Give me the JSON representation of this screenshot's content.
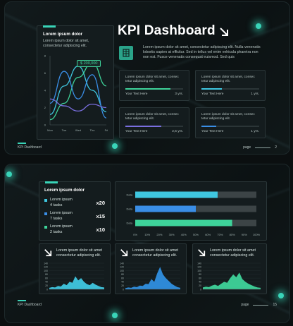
{
  "slide1": {
    "title": "KPI Dashboard",
    "intro_text": "Lorem ipsum dolor sit amet, consectetur adipiscing elit. Nulla venenatis lobortis sapien at efficitur. Sed in tellus vel enim vehicula pharetra non non est. Fusce venenatis consequat euismod. Sed quis",
    "chart_card": {
      "heading": "Lorem ipsum dolor",
      "subtext": "Lorem ipsum dolor sit amet, consectetur adipiscing elit.",
      "callout": "$ 200,000"
    },
    "kpi_cards": [
      {
        "text": "Lorem ipsum dolor sit amet, consec tetur adipiscing elit.",
        "label": "Your Text Here",
        "value": "3 yrs.",
        "progress": 0.78,
        "color": "#3ed39a"
      },
      {
        "text": "Lorem ipsum dolor sit amet, consec tetur adipiscing elit.",
        "label": "Your Text Here",
        "value": "1 yrs.",
        "progress": 0.35,
        "color": "#3fc7e0"
      },
      {
        "text": "Lorem ipsum dolor sit amet, consec tetur adipiscing elit.",
        "label": "Your Text Here",
        "value": "2,5 yrs.",
        "progress": 0.62,
        "color": "#7a6fe0"
      },
      {
        "text": "Lorem ipsum dolor sit amet, consec tetur adipiscing elit.",
        "label": "Your Text Here",
        "value": "1 yrs.",
        "progress": 0.25,
        "color": "#3a8ee6"
      }
    ],
    "footer_label": "KPI Dashboard",
    "page_word": "page",
    "page_number": "2"
  },
  "slide2": {
    "tasks_card": {
      "heading": "Lorem ipsum dolor",
      "items": [
        {
          "title": "Lorem ipsum",
          "sub": "4 tasks",
          "mult": "x20",
          "color": "#3fc7e0"
        },
        {
          "title": "Lorem ipsum",
          "sub": "7 tasks",
          "mult": "x15",
          "color": "#3a8ee6"
        },
        {
          "title": "Lorem ipsum",
          "sub": "2 tasks",
          "mult": "x10",
          "color": "#3ed39a"
        }
      ]
    },
    "mini_cards": [
      {
        "text": "Lorem ipsum dolor sit amet consectetur adipiscing elit.",
        "color": "#3fc7e0"
      },
      {
        "text": "Lorem ipsum dolor sit amet consectetur adipiscing elit.",
        "color": "#2f8fe0"
      },
      {
        "text": "Lorem ipsum dolor sit amet consectetur adipiscing elit.",
        "color": "#3ed39a"
      }
    ],
    "footer_label": "KPI Dashboard",
    "page_word": "page",
    "page_number": "15"
  },
  "chart_data": [
    {
      "type": "line",
      "categories": [
        "Mon",
        "Tue",
        "Wed",
        "Thu",
        "Fri"
      ],
      "yticks": [
        "0",
        "2",
        "4",
        "6",
        "8"
      ],
      "ylim": [
        0,
        8
      ],
      "series": [
        {
          "color": "#3fc7e0",
          "values": [
            1.2,
            4.5,
            6.8,
            4.0,
            1.5
          ]
        },
        {
          "color": "#3ed39a",
          "values": [
            0.6,
            2.5,
            5.5,
            7.2,
            4.5
          ]
        },
        {
          "color": "#3a8ee6",
          "values": [
            2.5,
            6.2,
            3.0,
            5.8,
            0.8
          ]
        },
        {
          "color": "#7a6fe0",
          "values": [
            3.0,
            2.2,
            1.6,
            2.4,
            2.0
          ]
        }
      ]
    },
    {
      "type": "bar",
      "orientation": "horizontal",
      "categories": [
        "Data",
        "Data",
        "Data"
      ],
      "values": [
        68,
        50,
        80
      ],
      "colors": [
        "#3fc7e0",
        "#3a8ee6",
        "#3ed39a"
      ],
      "xticks": [
        "0%",
        "10%",
        "20%",
        "30%",
        "40%",
        "50%",
        "60%",
        "70%",
        "80%",
        "90%",
        "100%"
      ],
      "xlim": [
        0,
        100
      ]
    },
    {
      "type": "area",
      "yticks": [
        "0",
        "20",
        "40",
        "60",
        "80",
        "100",
        "120",
        "140"
      ],
      "ylim": [
        0,
        140
      ],
      "series": [
        {
          "color": "#3fc7e0",
          "values": [
            8,
            12,
            10,
            18,
            15,
            30,
            22,
            40,
            35,
            70,
            48,
            60,
            40,
            28,
            22,
            35,
            25,
            18,
            12,
            10
          ]
        },
        {
          "color": "#2f8fe0",
          "values": [
            6,
            10,
            8,
            14,
            12,
            20,
            18,
            30,
            28,
            55,
            40,
            85,
            120,
            80,
            60,
            45,
            30,
            20,
            12,
            8
          ]
        },
        {
          "color": "#3ed39a",
          "values": [
            10,
            14,
            12,
            20,
            25,
            18,
            30,
            40,
            35,
            60,
            80,
            65,
            90,
            55,
            40,
            30,
            22,
            15,
            10,
            8
          ]
        }
      ]
    }
  ]
}
